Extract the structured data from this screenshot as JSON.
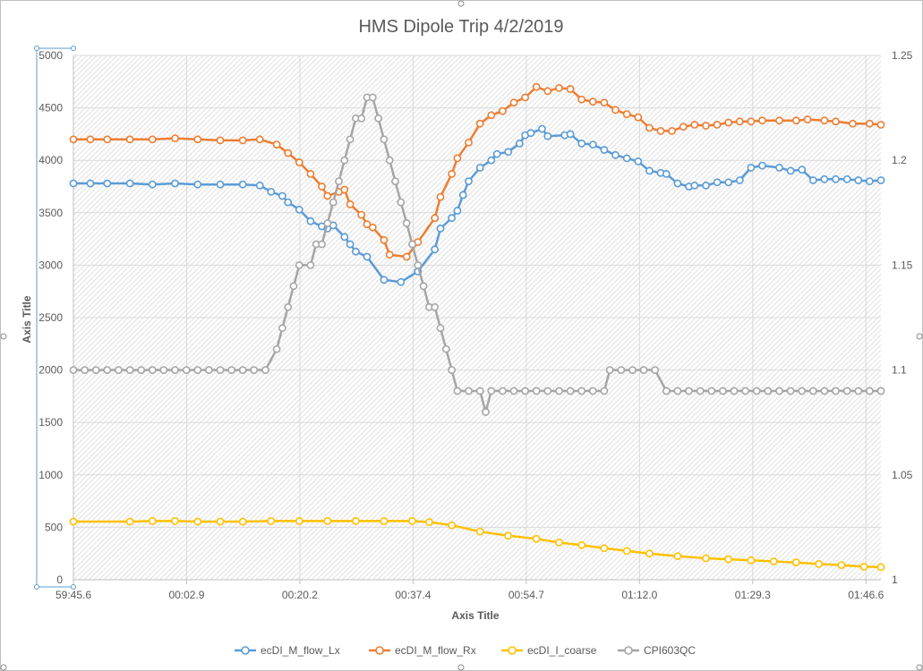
{
  "chart_data": {
    "type": "line",
    "title": "HMS Dipole Trip 4/2/2019",
    "xlabel": "Axis Title",
    "ylabel": "Axis Title",
    "x_tick_labels": [
      "59:45.6",
      "00:02.9",
      "00:20.2",
      "00:37.4",
      "00:54.7",
      "01:12.0",
      "01:29.3",
      "01:46.6"
    ],
    "y_left": {
      "ticks": [
        "0",
        "500",
        "1000",
        "1500",
        "2000",
        "2500",
        "3000",
        "3500",
        "4000",
        "4500",
        "5000"
      ],
      "ylim": [
        0,
        5000
      ]
    },
    "y_right": {
      "ticks": [
        "1",
        "1.05",
        "1.1",
        "1.15",
        "1.2",
        "1.25"
      ],
      "ylim": [
        1,
        1.25
      ]
    },
    "legend_position": "bottom",
    "series": [
      {
        "name": "ecDI_M_flow_Lx",
        "color": "#5b9bd5",
        "axis": "left",
        "points": [
          [
            0,
            3780
          ],
          [
            6,
            3780
          ],
          [
            12,
            3780
          ],
          [
            20,
            3780
          ],
          [
            28,
            3770
          ],
          [
            36,
            3780
          ],
          [
            44,
            3770
          ],
          [
            52,
            3770
          ],
          [
            60,
            3770
          ],
          [
            66,
            3760
          ],
          [
            70,
            3700
          ],
          [
            74,
            3660
          ],
          [
            76,
            3600
          ],
          [
            80,
            3530
          ],
          [
            84,
            3420
          ],
          [
            88,
            3370
          ],
          [
            90,
            3350
          ],
          [
            92,
            3380
          ],
          [
            96,
            3270
          ],
          [
            98,
            3200
          ],
          [
            100,
            3130
          ],
          [
            104,
            3080
          ],
          [
            110,
            2860
          ],
          [
            116,
            2840
          ],
          [
            122,
            2940
          ],
          [
            128,
            3150
          ],
          [
            130,
            3350
          ],
          [
            134,
            3450
          ],
          [
            136,
            3520
          ],
          [
            138,
            3670
          ],
          [
            140,
            3800
          ],
          [
            144,
            3930
          ],
          [
            148,
            4000
          ],
          [
            150,
            4060
          ],
          [
            154,
            4080
          ],
          [
            158,
            4160
          ],
          [
            160,
            4240
          ],
          [
            162,
            4260
          ],
          [
            166,
            4300
          ],
          [
            168,
            4230
          ],
          [
            174,
            4240
          ],
          [
            176,
            4250
          ],
          [
            180,
            4160
          ],
          [
            184,
            4150
          ],
          [
            188,
            4100
          ],
          [
            192,
            4050
          ],
          [
            196,
            4020
          ],
          [
            200,
            3990
          ],
          [
            204,
            3900
          ],
          [
            208,
            3880
          ],
          [
            210,
            3870
          ],
          [
            214,
            3780
          ],
          [
            218,
            3750
          ],
          [
            220,
            3760
          ],
          [
            224,
            3760
          ],
          [
            228,
            3790
          ],
          [
            232,
            3790
          ],
          [
            236,
            3810
          ],
          [
            240,
            3930
          ],
          [
            244,
            3950
          ],
          [
            250,
            3930
          ],
          [
            254,
            3900
          ],
          [
            258,
            3910
          ],
          [
            262,
            3810
          ],
          [
            266,
            3820
          ],
          [
            270,
            3820
          ],
          [
            274,
            3820
          ],
          [
            278,
            3810
          ],
          [
            282,
            3800
          ],
          [
            286,
            3810
          ]
        ]
      },
      {
        "name": "ecDI_M_flow_Rx",
        "color": "#ed7d31",
        "axis": "left",
        "points": [
          [
            0,
            4200
          ],
          [
            6,
            4200
          ],
          [
            12,
            4200
          ],
          [
            20,
            4200
          ],
          [
            28,
            4200
          ],
          [
            36,
            4210
          ],
          [
            44,
            4200
          ],
          [
            52,
            4190
          ],
          [
            60,
            4190
          ],
          [
            66,
            4200
          ],
          [
            72,
            4150
          ],
          [
            76,
            4070
          ],
          [
            80,
            3980
          ],
          [
            84,
            3870
          ],
          [
            88,
            3750
          ],
          [
            90,
            3660
          ],
          [
            94,
            3700
          ],
          [
            96,
            3720
          ],
          [
            98,
            3580
          ],
          [
            102,
            3480
          ],
          [
            104,
            3390
          ],
          [
            106,
            3360
          ],
          [
            110,
            3240
          ],
          [
            112,
            3100
          ],
          [
            118,
            3080
          ],
          [
            122,
            3220
          ],
          [
            128,
            3450
          ],
          [
            130,
            3650
          ],
          [
            134,
            3870
          ],
          [
            136,
            4020
          ],
          [
            140,
            4170
          ],
          [
            144,
            4350
          ],
          [
            148,
            4430
          ],
          [
            152,
            4470
          ],
          [
            156,
            4550
          ],
          [
            160,
            4600
          ],
          [
            164,
            4700
          ],
          [
            168,
            4660
          ],
          [
            172,
            4690
          ],
          [
            176,
            4680
          ],
          [
            180,
            4580
          ],
          [
            184,
            4560
          ],
          [
            188,
            4550
          ],
          [
            192,
            4480
          ],
          [
            196,
            4440
          ],
          [
            200,
            4410
          ],
          [
            204,
            4310
          ],
          [
            208,
            4280
          ],
          [
            212,
            4280
          ],
          [
            216,
            4320
          ],
          [
            220,
            4340
          ],
          [
            224,
            4330
          ],
          [
            228,
            4340
          ],
          [
            232,
            4360
          ],
          [
            236,
            4370
          ],
          [
            240,
            4370
          ],
          [
            244,
            4380
          ],
          [
            250,
            4380
          ],
          [
            256,
            4380
          ],
          [
            260,
            4390
          ],
          [
            266,
            4380
          ],
          [
            270,
            4370
          ],
          [
            276,
            4350
          ],
          [
            282,
            4350
          ],
          [
            286,
            4340
          ]
        ]
      },
      {
        "name": "ecDI_I_coarse",
        "color": "#ffc000",
        "axis": "left",
        "points": [
          [
            0,
            555
          ],
          [
            20,
            555
          ],
          [
            28,
            560
          ],
          [
            36,
            560
          ],
          [
            44,
            555
          ],
          [
            52,
            555
          ],
          [
            60,
            555
          ],
          [
            70,
            560
          ],
          [
            80,
            560
          ],
          [
            90,
            560
          ],
          [
            100,
            560
          ],
          [
            110,
            560
          ],
          [
            120,
            560
          ],
          [
            126,
            550
          ],
          [
            134,
            520
          ],
          [
            144,
            460
          ],
          [
            154,
            420
          ],
          [
            164,
            390
          ],
          [
            172,
            355
          ],
          [
            180,
            330
          ],
          [
            188,
            300
          ],
          [
            196,
            275
          ],
          [
            204,
            250
          ],
          [
            214,
            225
          ],
          [
            224,
            205
          ],
          [
            232,
            195
          ],
          [
            240,
            185
          ],
          [
            248,
            175
          ],
          [
            256,
            165
          ],
          [
            264,
            150
          ],
          [
            272,
            140
          ],
          [
            280,
            125
          ],
          [
            286,
            120
          ]
        ]
      },
      {
        "name": "CPI603QC",
        "color": "#a5a5a5",
        "axis": "right",
        "points": [
          [
            0,
            1.1
          ],
          [
            4,
            1.1
          ],
          [
            8,
            1.1
          ],
          [
            12,
            1.1
          ],
          [
            16,
            1.1
          ],
          [
            20,
            1.1
          ],
          [
            24,
            1.1
          ],
          [
            28,
            1.1
          ],
          [
            32,
            1.1
          ],
          [
            36,
            1.1
          ],
          [
            40,
            1.1
          ],
          [
            44,
            1.1
          ],
          [
            48,
            1.1
          ],
          [
            52,
            1.1
          ],
          [
            56,
            1.1
          ],
          [
            60,
            1.1
          ],
          [
            64,
            1.1
          ],
          [
            68,
            1.1
          ],
          [
            72,
            1.11
          ],
          [
            74,
            1.12
          ],
          [
            76,
            1.13
          ],
          [
            78,
            1.14
          ],
          [
            80,
            1.15
          ],
          [
            84,
            1.15
          ],
          [
            86,
            1.16
          ],
          [
            88,
            1.16
          ],
          [
            90,
            1.17
          ],
          [
            92,
            1.18
          ],
          [
            94,
            1.19
          ],
          [
            96,
            1.2
          ],
          [
            98,
            1.21
          ],
          [
            100,
            1.22
          ],
          [
            102,
            1.22
          ],
          [
            104,
            1.23
          ],
          [
            106,
            1.23
          ],
          [
            108,
            1.22
          ],
          [
            110,
            1.21
          ],
          [
            112,
            1.2
          ],
          [
            114,
            1.19
          ],
          [
            116,
            1.18
          ],
          [
            118,
            1.17
          ],
          [
            120,
            1.16
          ],
          [
            122,
            1.15
          ],
          [
            124,
            1.14
          ],
          [
            126,
            1.13
          ],
          [
            128,
            1.13
          ],
          [
            130,
            1.12
          ],
          [
            132,
            1.11
          ],
          [
            134,
            1.1
          ],
          [
            136,
            1.09
          ],
          [
            140,
            1.09
          ],
          [
            144,
            1.09
          ],
          [
            146,
            1.08
          ],
          [
            148,
            1.09
          ],
          [
            152,
            1.09
          ],
          [
            156,
            1.09
          ],
          [
            160,
            1.09
          ],
          [
            164,
            1.09
          ],
          [
            168,
            1.09
          ],
          [
            172,
            1.09
          ],
          [
            176,
            1.09
          ],
          [
            180,
            1.09
          ],
          [
            184,
            1.09
          ],
          [
            188,
            1.09
          ],
          [
            190,
            1.1
          ],
          [
            194,
            1.1
          ],
          [
            198,
            1.1
          ],
          [
            202,
            1.1
          ],
          [
            206,
            1.1
          ],
          [
            210,
            1.09
          ],
          [
            214,
            1.09
          ],
          [
            218,
            1.09
          ],
          [
            222,
            1.09
          ],
          [
            226,
            1.09
          ],
          [
            230,
            1.09
          ],
          [
            234,
            1.09
          ],
          [
            238,
            1.09
          ],
          [
            242,
            1.09
          ],
          [
            246,
            1.09
          ],
          [
            250,
            1.09
          ],
          [
            254,
            1.09
          ],
          [
            258,
            1.09
          ],
          [
            262,
            1.09
          ],
          [
            266,
            1.09
          ],
          [
            270,
            1.09
          ],
          [
            274,
            1.09
          ],
          [
            278,
            1.09
          ],
          [
            282,
            1.09
          ],
          [
            286,
            1.09
          ]
        ]
      }
    ]
  }
}
